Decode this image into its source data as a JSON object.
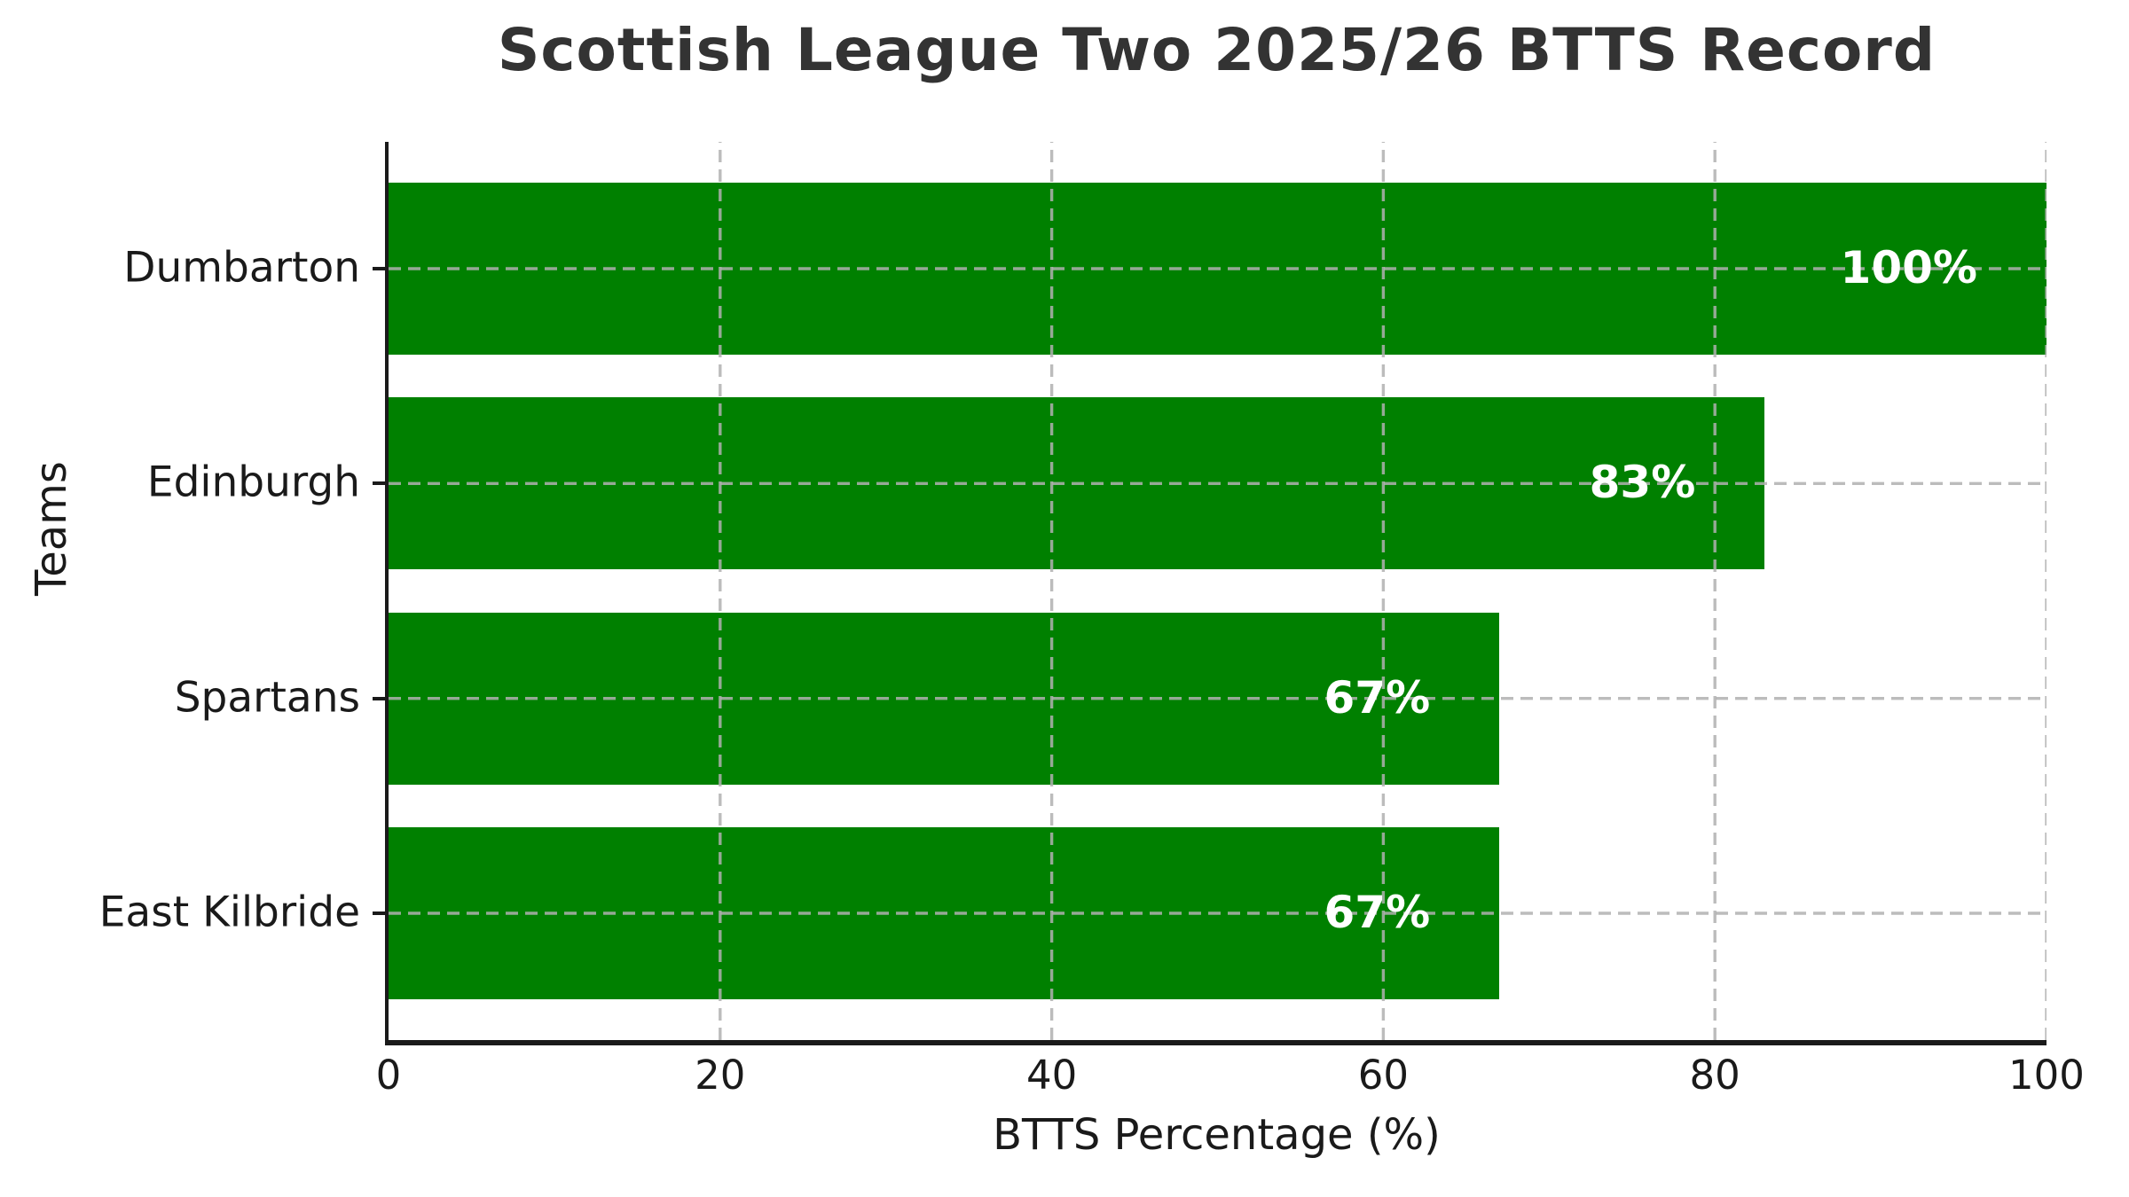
{
  "chart_data": {
    "type": "bar",
    "orientation": "horizontal",
    "title": "Scottish League Two 2025/26 BTTS Record",
    "categories": [
      "Dumbarton",
      "Edinburgh",
      "Spartans",
      "East Kilbride"
    ],
    "values": [
      100,
      83,
      67,
      67
    ],
    "value_labels": [
      "100%",
      "83%",
      "67%",
      "67%"
    ],
    "xlabel": "BTTS Percentage (%)",
    "ylabel": "Teams",
    "xlim": [
      0,
      100
    ],
    "xticks": [
      {
        "label": "0",
        "value": 0
      },
      {
        "label": "20",
        "value": 20
      },
      {
        "label": "40",
        "value": 40
      },
      {
        "label": "60",
        "value": 60
      },
      {
        "label": "80",
        "value": 80
      },
      {
        "label": "100",
        "value": 100
      }
    ],
    "grid": {
      "linestyle": "dashed",
      "axes": "both",
      "drawn_over_bars": true
    },
    "legend": null,
    "colors": {
      "bar": "#008000",
      "value_label": "#ffffff",
      "title": "#333333",
      "axis_text": "#1a1a1a",
      "spine": "#1a1a1a",
      "grid": "#b0b0b0",
      "background": "#ffffff"
    }
  }
}
